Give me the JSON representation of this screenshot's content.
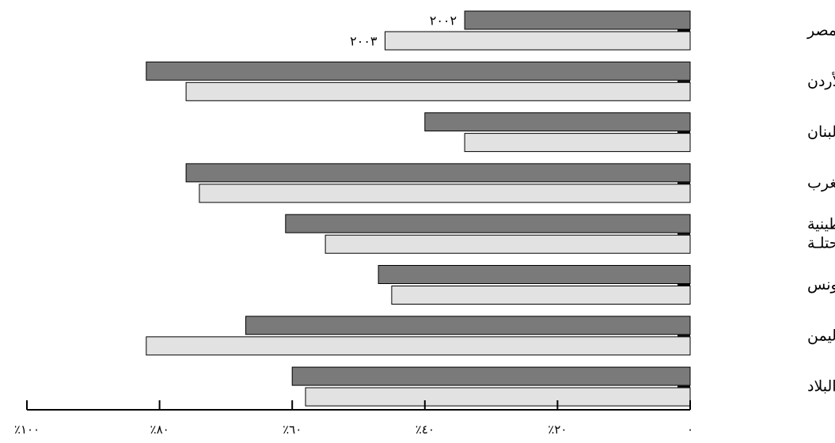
{
  "chart_data": {
    "type": "bar",
    "orientation": "horizontal",
    "x_direction": "right-to-left",
    "categories": [
      [
        "مصر"
      ],
      [
        "الأردن"
      ],
      [
        "لبنان"
      ],
      [
        "المغرب"
      ],
      [
        "الأراضي الفلسطينية",
        "المحتلـة"
      ],
      [
        "تونس"
      ],
      [
        "اليمن"
      ],
      [
        "جميع البلاد"
      ]
    ],
    "series": [
      {
        "name": "٢٠٠٢",
        "color": "#7a7a7a",
        "values": [
          34,
          82,
          40,
          76,
          61,
          47,
          67,
          60
        ]
      },
      {
        "name": "٢٠٠٣",
        "color": "#e2e2e2",
        "values": [
          46,
          76,
          34,
          74,
          55,
          45,
          82,
          58
        ]
      }
    ],
    "xlim": [
      0,
      100
    ],
    "tick_labels": [
      "٠",
      "٪٢٠",
      "٪٤٠",
      "٪٦٠",
      "٪٨٠",
      "٪١٠٠"
    ],
    "legend": "inline labels on first category bars",
    "grid": false
  }
}
